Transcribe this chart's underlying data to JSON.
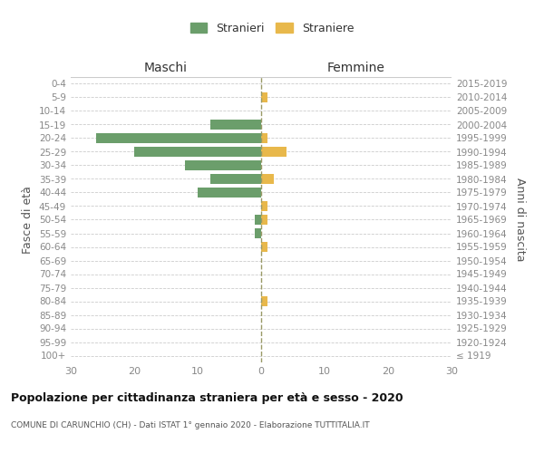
{
  "age_groups": [
    "100+",
    "95-99",
    "90-94",
    "85-89",
    "80-84",
    "75-79",
    "70-74",
    "65-69",
    "60-64",
    "55-59",
    "50-54",
    "45-49",
    "40-44",
    "35-39",
    "30-34",
    "25-29",
    "20-24",
    "15-19",
    "10-14",
    "5-9",
    "0-4"
  ],
  "birth_years": [
    "≤ 1919",
    "1920-1924",
    "1925-1929",
    "1930-1934",
    "1935-1939",
    "1940-1944",
    "1945-1949",
    "1950-1954",
    "1955-1959",
    "1960-1964",
    "1965-1969",
    "1970-1974",
    "1975-1979",
    "1980-1984",
    "1985-1989",
    "1990-1994",
    "1995-1999",
    "2000-2004",
    "2005-2009",
    "2010-2014",
    "2015-2019"
  ],
  "males": [
    0,
    0,
    0,
    0,
    0,
    0,
    0,
    0,
    0,
    1,
    1,
    0,
    10,
    8,
    12,
    20,
    26,
    8,
    0,
    0,
    0
  ],
  "females": [
    0,
    0,
    0,
    0,
    1,
    0,
    0,
    0,
    1,
    0,
    1,
    1,
    0,
    2,
    0,
    4,
    1,
    0,
    0,
    1,
    0
  ],
  "male_color": "#6b9e6b",
  "female_color": "#e8b84b",
  "title": "Popolazione per cittadinanza straniera per età e sesso - 2020",
  "subtitle": "COMUNE DI CARUNCHIO (CH) - Dati ISTAT 1° gennaio 2020 - Elaborazione TUTTITALIA.IT",
  "ylabel_left": "Fasce di età",
  "ylabel_right": "Anni di nascita",
  "xlabel_left": "Maschi",
  "xlabel_right": "Femmine",
  "legend_male": "Stranieri",
  "legend_female": "Straniere",
  "xlim": 30,
  "bg_color": "#ffffff",
  "grid_color": "#cccccc",
  "axis_label_color": "#555555",
  "tick_color": "#888888"
}
